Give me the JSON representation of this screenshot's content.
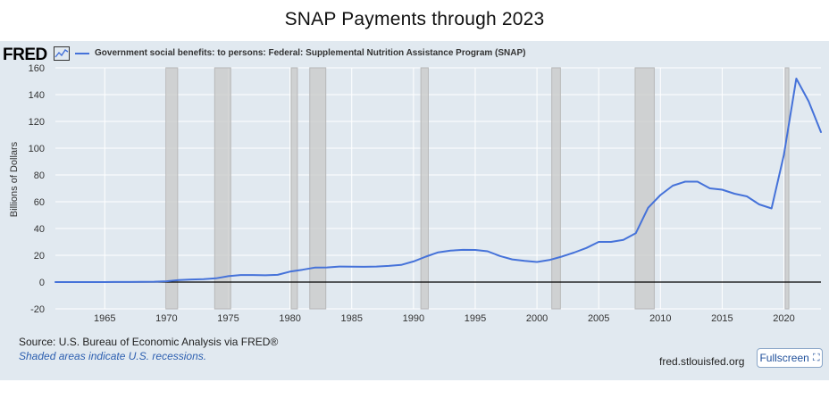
{
  "title": "SNAP Payments through 2023",
  "brand": {
    "logo_text": "FRED",
    "graph_icon": "line-chart-icon"
  },
  "colors": {
    "line": "#4572d9",
    "panel": "#e1e9f0",
    "recession": "#c8c8c8",
    "zero_line": "#000000",
    "note": "#2d5fb0"
  },
  "footer": {
    "source": "Source: U.S. Bureau of Economic Analysis via FRED®",
    "recession_note": "Shaded areas indicate U.S. recessions.",
    "site": "fred.stlouisfed.org",
    "fullscreen_label": "Fullscreen",
    "fullscreen_icon": "fullscreen-icon"
  },
  "chart_data": {
    "type": "line",
    "title": "SNAP Payments through 2023",
    "ylabel": "Billions of Dollars",
    "xlabel": "",
    "xlim": [
      1961,
      2023
    ],
    "ylim": [
      -20,
      160
    ],
    "yticks": [
      -20,
      0,
      20,
      40,
      60,
      80,
      100,
      120,
      140,
      160
    ],
    "xticks": [
      1965,
      1970,
      1975,
      1980,
      1985,
      1990,
      1995,
      2000,
      2005,
      2010,
      2015,
      2020
    ],
    "grid": true,
    "legend_position": "top-left",
    "series": [
      {
        "name": "Government social benefits: to persons: Federal: Supplemental Nutrition Assistance Program (SNAP)",
        "x": [
          1961,
          1962,
          1963,
          1964,
          1965,
          1966,
          1967,
          1968,
          1969,
          1970,
          1971,
          1972,
          1973,
          1974,
          1975,
          1976,
          1977,
          1978,
          1979,
          1980,
          1981,
          1982,
          1983,
          1984,
          1985,
          1986,
          1987,
          1988,
          1989,
          1990,
          1991,
          1992,
          1993,
          1994,
          1995,
          1996,
          1997,
          1998,
          1999,
          2000,
          2001,
          2002,
          2003,
          2004,
          2005,
          2006,
          2007,
          2008,
          2009,
          2010,
          2011,
          2012,
          2013,
          2014,
          2015,
          2016,
          2017,
          2018,
          2019,
          2020,
          2021,
          2022,
          2023
        ],
        "values": [
          0.0,
          0.0,
          0.0,
          0.0,
          0.0,
          0.1,
          0.1,
          0.2,
          0.3,
          0.6,
          1.5,
          1.9,
          2.2,
          2.8,
          4.4,
          5.3,
          5.3,
          5.1,
          5.4,
          7.8,
          9.2,
          10.8,
          10.9,
          11.6,
          11.5,
          11.4,
          11.6,
          12.1,
          12.8,
          15.4,
          19.0,
          22.2,
          23.5,
          24.1,
          24.0,
          23.0,
          19.5,
          16.9,
          15.8,
          15.0,
          16.5,
          19.0,
          22.0,
          25.5,
          30.0,
          30.0,
          31.5,
          36.5,
          55.5,
          65.0,
          72.0,
          75.0,
          75.0,
          70.0,
          69.0,
          66.0,
          64.0,
          58.0,
          55.0,
          95.0,
          152.0,
          135.0,
          112.0
        ]
      }
    ],
    "recessions": [
      [
        1969.95,
        1970.9
      ],
      [
        1973.9,
        1975.2
      ],
      [
        1980.1,
        1980.6
      ],
      [
        1981.6,
        1982.9
      ],
      [
        1990.6,
        1991.2
      ],
      [
        2001.2,
        2001.9
      ],
      [
        2007.95,
        2009.5
      ],
      [
        2020.1,
        2020.4
      ]
    ]
  }
}
